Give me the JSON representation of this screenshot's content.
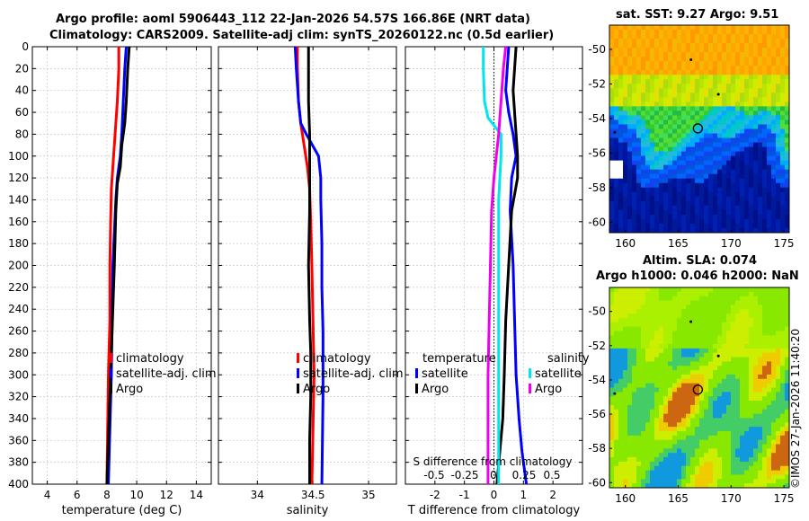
{
  "titles": {
    "line1": "Argo profile: aoml 5906443_112 22-Jan-2026 54.57S 166.86E (NRT data)",
    "line2": "Climatology: CARS2009. Satellite-adj clim: synTS_20260122.nc (0.5d earlier)",
    "map1": "sat. SST: 9.27 Argo: 9.51",
    "map2_line1": "Altim. SLA: 0.074",
    "map2_line2": "Argo h1000: 0.046 h2000: NaN",
    "watermark": "©IMOS 27-Jan-2026 11:40:20"
  },
  "colors": {
    "climatology": "#ff0000",
    "satellite": "#0000ff",
    "argo": "#000000",
    "satellite_s": "#00e5ee",
    "argo_s": "#ee00ee",
    "map_ocean_deep": "#00108a",
    "map_marker": "#000000"
  },
  "chart_data": [
    {
      "type": "line",
      "name": "temperature-profile",
      "xlabel": "temperature (deg C)",
      "ylabel": "",
      "xlim": [
        3,
        15
      ],
      "ylim": [
        400,
        0
      ],
      "xticks": [
        4,
        6,
        8,
        10,
        12,
        14
      ],
      "xtick_labels": [
        "4",
        "6",
        "8",
        "10",
        "12",
        "14"
      ],
      "yticks": [
        0,
        20,
        40,
        60,
        80,
        100,
        120,
        140,
        160,
        180,
        200,
        220,
        240,
        260,
        280,
        300,
        320,
        340,
        360,
        380,
        400
      ],
      "grid": true,
      "legend": [
        "climatology",
        "satellite-adj. clim",
        "Argo"
      ],
      "series": [
        {
          "name": "climatology",
          "color_key": "climatology",
          "x": [
            8.8,
            8.8,
            8.7,
            8.6,
            8.5,
            8.4,
            8.3,
            8.25,
            8.2,
            8.2,
            8.1,
            8.05,
            8.0
          ],
          "y": [
            0,
            20,
            50,
            70,
            90,
            110,
            130,
            160,
            200,
            250,
            300,
            350,
            400
          ]
        },
        {
          "name": "satellite-adj. clim",
          "color_key": "satellite",
          "x": [
            9.3,
            9.2,
            9.1,
            9.0,
            8.9,
            8.7,
            8.6,
            8.5,
            8.4,
            8.35,
            8.3,
            8.2,
            8.1
          ],
          "y": [
            0,
            20,
            50,
            80,
            100,
            120,
            140,
            170,
            200,
            250,
            300,
            350,
            400
          ]
        },
        {
          "name": "Argo",
          "color_key": "argo",
          "x": [
            9.5,
            9.4,
            9.3,
            9.2,
            9.1,
            9.0,
            8.9,
            8.7,
            8.6,
            8.5,
            8.4,
            8.3,
            8.2,
            8.1,
            8.0
          ],
          "y": [
            0,
            20,
            50,
            70,
            80,
            90,
            110,
            125,
            150,
            200,
            240,
            280,
            320,
            360,
            400
          ]
        }
      ]
    },
    {
      "type": "line",
      "name": "salinity-profile",
      "xlabel": "salinity",
      "xlim": [
        33.65,
        35.25
      ],
      "ylim": [
        400,
        0
      ],
      "xticks": [
        34,
        34.5,
        35
      ],
      "xtick_labels": [
        "34",
        "34.5",
        "35"
      ],
      "grid": true,
      "legend": [
        "climatology",
        "satellite-adj. clim",
        "Argo"
      ],
      "series": [
        {
          "name": "climatology",
          "color_key": "climatology",
          "x": [
            34.36,
            34.36,
            34.37,
            34.39,
            34.42,
            34.45,
            34.47,
            34.48,
            34.49,
            34.5,
            34.51,
            34.5,
            34.49
          ],
          "y": [
            0,
            20,
            50,
            70,
            90,
            110,
            130,
            160,
            200,
            250,
            300,
            350,
            400
          ]
        },
        {
          "name": "satellite-adj. clim",
          "color_key": "satellite",
          "x": [
            34.34,
            34.35,
            34.37,
            34.39,
            34.44,
            34.55,
            34.57,
            34.57,
            34.58,
            34.58,
            34.59,
            34.59,
            34.58
          ],
          "y": [
            0,
            20,
            50,
            70,
            80,
            100,
            120,
            140,
            180,
            220,
            260,
            320,
            400
          ]
        },
        {
          "name": "Argo",
          "color_key": "argo",
          "x": [
            34.46,
            34.46,
            34.46,
            34.47,
            34.47,
            34.47,
            34.46,
            34.47,
            34.48,
            34.48,
            34.47,
            34.47
          ],
          "y": [
            0,
            20,
            50,
            80,
            120,
            150,
            200,
            250,
            280,
            320,
            360,
            400
          ]
        }
      ]
    },
    {
      "type": "line",
      "name": "difference-profile",
      "xlabel": "T difference from climatology",
      "xlabel_top": "S difference from climatology",
      "xlim": [
        -3,
        3
      ],
      "ylim": [
        400,
        0
      ],
      "xticks": [
        -2,
        -1,
        0,
        1,
        2
      ],
      "xtick_labels": [
        "-2",
        "-1",
        "0",
        "1",
        "2"
      ],
      "top_ticks": [
        -0.5,
        -0.25,
        0,
        0.25,
        0.5
      ],
      "top_tick_labels": [
        "-0.5",
        "-0.25",
        "0",
        "0.25",
        "0.5"
      ],
      "grid": true,
      "legend_temperature_title": "temperature",
      "legend_salinity_title": "salinity",
      "legend_temperature": [
        "satellite",
        "Argo"
      ],
      "legend_salinity": [
        "satellite",
        "Argo"
      ],
      "series": [
        {
          "name": "T satellite",
          "color_key": "satellite",
          "x": [
            0.5,
            0.45,
            0.4,
            0.5,
            0.65,
            0.75,
            0.6,
            0.55,
            0.65,
            0.7,
            0.75,
            0.85,
            0.95,
            1.1
          ],
          "y": [
            0,
            20,
            40,
            60,
            80,
            100,
            120,
            150,
            200,
            250,
            300,
            340,
            370,
            400
          ]
        },
        {
          "name": "T Argo",
          "color_key": "argo",
          "x": [
            0.75,
            0.7,
            0.65,
            0.7,
            0.75,
            0.8,
            0.8,
            0.6,
            0.5,
            0.4,
            0.35,
            0.3,
            0.2,
            0.1
          ],
          "y": [
            0,
            20,
            40,
            60,
            80,
            100,
            120,
            150,
            200,
            250,
            300,
            340,
            370,
            400
          ]
        },
        {
          "name": "S satellite",
          "color_key": "satellite_s",
          "x": [
            -0.09,
            -0.09,
            -0.08,
            -0.05,
            0.06,
            0.06,
            0.04,
            0.04,
            0.04,
            0.04,
            0.04,
            0.04
          ],
          "y": [
            0,
            20,
            50,
            65,
            80,
            100,
            140,
            200,
            250,
            300,
            350,
            400
          ]
        },
        {
          "name": "S Argo",
          "color_key": "argo_s",
          "x": [
            0.1,
            0.08,
            0.06,
            0.04,
            0.02,
            0.0,
            -0.02,
            -0.03,
            -0.04,
            -0.05,
            -0.05
          ],
          "y": [
            0,
            20,
            50,
            80,
            100,
            120,
            150,
            200,
            250,
            300,
            400
          ]
        }
      ]
    },
    {
      "type": "heatmap",
      "name": "sst-map",
      "title": "sat. SST: 9.27 Argo: 9.51",
      "xlim": [
        158.5,
        175.5
      ],
      "ylim": [
        -60.6,
        -48.6
      ],
      "xticks": [
        160,
        165,
        170,
        175
      ],
      "xtick_labels": [
        "160",
        "165",
        "170",
        "175"
      ],
      "yticks": [
        -50,
        -52,
        -54,
        -56,
        -58,
        -60
      ],
      "ytick_labels": [
        "-50",
        "-52",
        "-54",
        "-56",
        "-58",
        "-60"
      ],
      "marker": {
        "lon": 166.86,
        "lat": -54.57
      }
    },
    {
      "type": "heatmap",
      "name": "sla-map",
      "title": "Altim. SLA: 0.074 / Argo h1000: 0.046 h2000: NaN",
      "xlim": [
        158.5,
        175.5
      ],
      "ylim": [
        -60.3,
        -48.6
      ],
      "xticks": [
        160,
        165,
        170,
        175
      ],
      "xtick_labels": [
        "160",
        "165",
        "170",
        "175"
      ],
      "yticks": [
        -50,
        -52,
        -54,
        -56,
        -58,
        -60
      ],
      "ytick_labels": [
        "-50",
        "-52",
        "-54",
        "-56",
        "-58",
        "-60"
      ],
      "marker": {
        "lon": 166.86,
        "lat": -54.57
      }
    }
  ]
}
